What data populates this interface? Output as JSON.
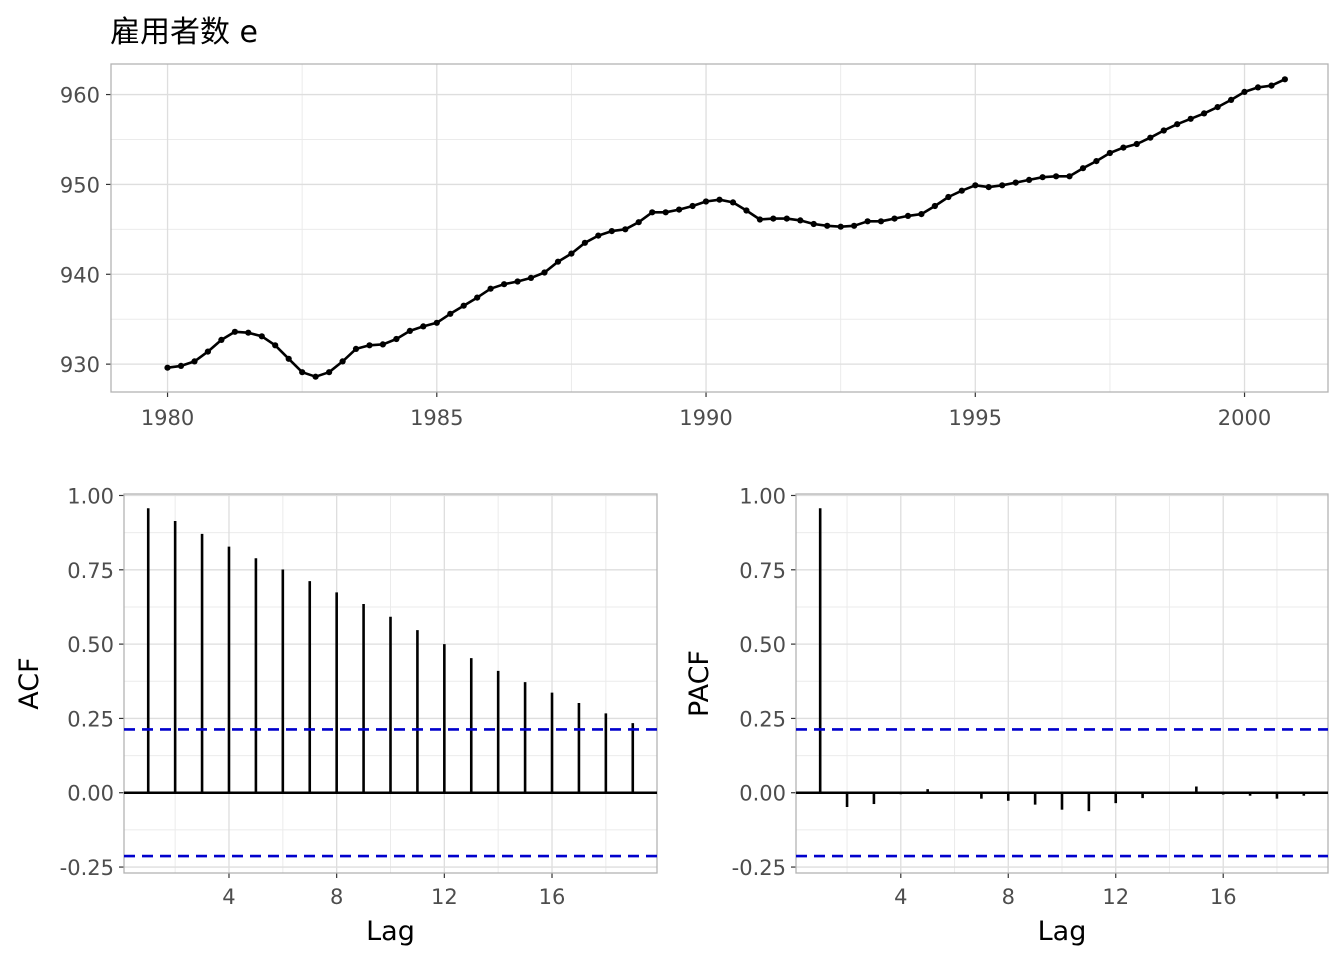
{
  "title": "雇用者数 e",
  "chart_data": [
    {
      "type": "line",
      "title": "雇用者数 e",
      "xlabel": "",
      "ylabel": "",
      "x_ticks": [
        "1980",
        "1985",
        "1990",
        "1995",
        "2000"
      ],
      "y_ticks": [
        "930",
        "940",
        "950",
        "960"
      ],
      "xlim": [
        1978.95,
        2001.55
      ],
      "ylim": [
        926.9,
        963.4
      ],
      "grid": true,
      "series": [
        {
          "x_start": 1980.0,
          "x_step": 0.25,
          "values": [
            929.6,
            929.8,
            930.3,
            931.4,
            932.7,
            933.6,
            933.5,
            933.1,
            932.1,
            930.6,
            929.1,
            928.6,
            929.1,
            930.3,
            931.7,
            932.1,
            932.2,
            932.8,
            933.7,
            934.2,
            934.6,
            935.6,
            936.5,
            937.4,
            938.4,
            938.9,
            939.2,
            939.6,
            940.2,
            941.4,
            942.3,
            943.5,
            944.3,
            944.8,
            945.0,
            945.8,
            946.9,
            946.9,
            947.2,
            947.6,
            948.1,
            948.3,
            948.0,
            947.1,
            946.1,
            946.2,
            946.2,
            946.0,
            945.6,
            945.4,
            945.3,
            945.4,
            945.9,
            945.9,
            946.2,
            946.5,
            946.7,
            947.6,
            948.6,
            949.3,
            949.9,
            949.7,
            949.9,
            950.2,
            950.5,
            950.8,
            950.9,
            950.9,
            951.8,
            952.6,
            953.5,
            954.1,
            954.5,
            955.2,
            956.0,
            956.7,
            957.3,
            957.9,
            958.6,
            959.4,
            960.3,
            960.8,
            961.0,
            961.7
          ]
        }
      ]
    },
    {
      "type": "bar",
      "xlabel": "Lag",
      "ylabel": "ACF",
      "lags": [
        1,
        2,
        3,
        4,
        5,
        6,
        7,
        8,
        9,
        10,
        11,
        12,
        13,
        14,
        15,
        16,
        17,
        18,
        19
      ],
      "values": [
        0.957,
        0.914,
        0.871,
        0.828,
        0.789,
        0.751,
        0.712,
        0.674,
        0.635,
        0.592,
        0.547,
        0.5,
        0.453,
        0.41,
        0.372,
        0.337,
        0.302,
        0.267,
        0.234
      ],
      "ci_upper": 0.213,
      "ci_lower": -0.213,
      "ci_color": "#0000CC",
      "x_ticks": [
        "4",
        "8",
        "12",
        "16"
      ],
      "y_ticks": [
        "-0.25",
        "0.00",
        "0.25",
        "0.50",
        "0.75",
        "1.00"
      ],
      "xlim": [
        0.1,
        19.9
      ],
      "ylim": [
        -0.27,
        1.005
      ],
      "grid": true
    },
    {
      "type": "bar",
      "xlabel": "Lag",
      "ylabel": "PACF",
      "lags": [
        1,
        2,
        3,
        4,
        5,
        6,
        7,
        8,
        9,
        10,
        11,
        12,
        13,
        14,
        15,
        16,
        17,
        18,
        19
      ],
      "values": [
        0.957,
        -0.048,
        -0.038,
        -0.005,
        0.012,
        -0.003,
        -0.02,
        -0.027,
        -0.04,
        -0.057,
        -0.062,
        -0.035,
        -0.018,
        0.0,
        0.021,
        -0.006,
        -0.01,
        -0.02,
        -0.01
      ],
      "ci_upper": 0.213,
      "ci_lower": -0.213,
      "ci_color": "#0000CC",
      "x_ticks": [
        "4",
        "8",
        "12",
        "16"
      ],
      "y_ticks": [
        "-0.25",
        "0.00",
        "0.25",
        "0.50",
        "0.75",
        "1.00"
      ],
      "xlim": [
        0.1,
        19.9
      ],
      "ylim": [
        -0.27,
        1.005
      ],
      "grid": true
    }
  ]
}
